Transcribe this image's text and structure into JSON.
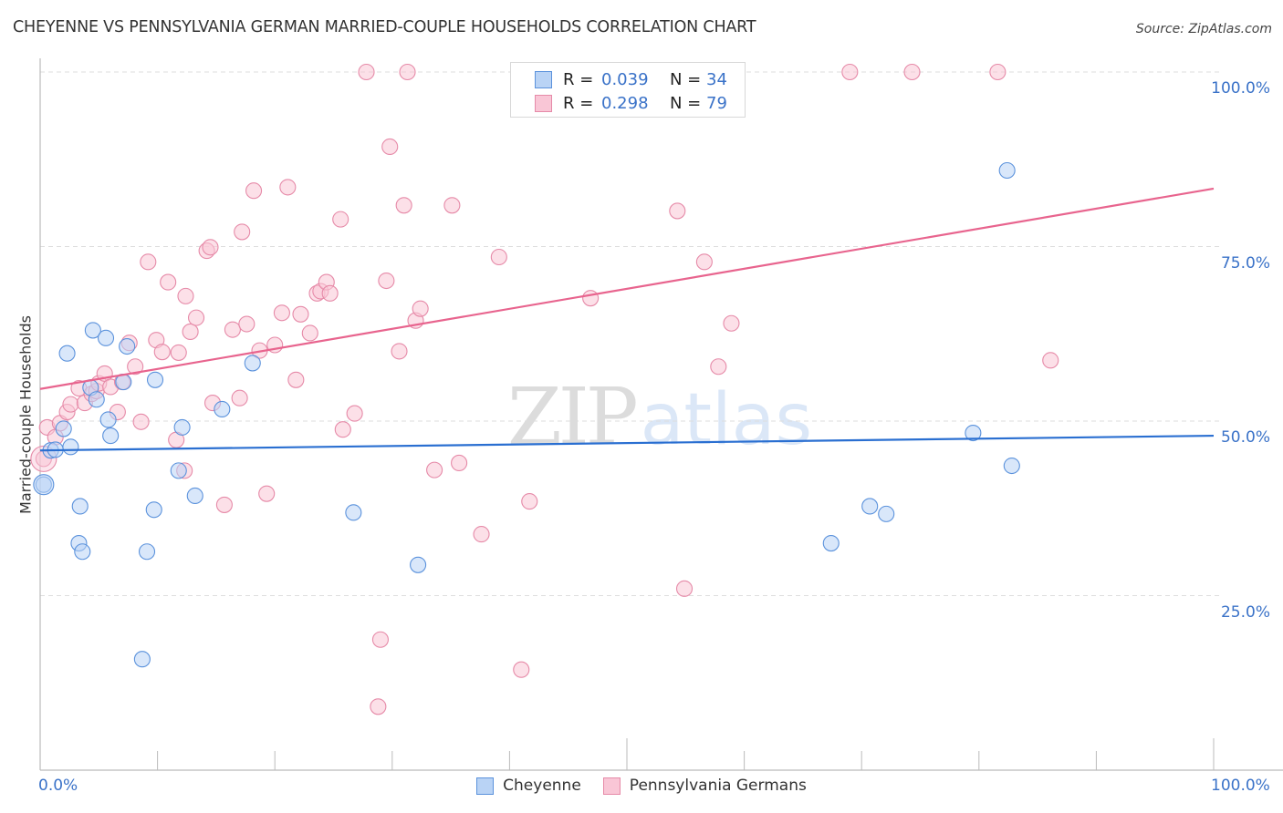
{
  "header": {
    "title": "CHEYENNE VS PENNSYLVANIA GERMAN MARRIED-COUPLE HOUSEHOLDS CORRELATION CHART",
    "source": "Source: ZipAtlas.com"
  },
  "watermark": {
    "zip": "ZIP",
    "atlas": "atlas"
  },
  "axes": {
    "ylabel": "Married-couple Households",
    "yticks": [
      {
        "label": "100.0%",
        "value": 100
      },
      {
        "label": "75.0%",
        "value": 75
      },
      {
        "label": "50.0%",
        "value": 50
      },
      {
        "label": "25.0%",
        "value": 25
      }
    ],
    "xticks": [
      {
        "label": "0.0%",
        "value": 0
      },
      {
        "label": "100.0%",
        "value": 100
      }
    ]
  },
  "stats": [
    {
      "r_label": "R =",
      "r_value": "0.039",
      "n_label": "N =",
      "n_value": "34"
    },
    {
      "r_label": "R =",
      "r_value": "0.298",
      "n_label": "N =",
      "n_value": "79"
    }
  ],
  "legend": [
    {
      "label": "Cheyenne"
    },
    {
      "label": "Pennsylvania Germans"
    }
  ],
  "colors": {
    "cheyenne_fill": "#b9d3f5",
    "cheyenne_stroke": "#5b92dc",
    "cheyenne_line": "#2a6fd1",
    "pa_fill": "#f9c6d6",
    "pa_stroke": "#e68aa8",
    "pa_line": "#e8648e",
    "tick_label": "#3a72c8",
    "grid": "#dddddd"
  },
  "chart_data": {
    "type": "scatter",
    "title": "CHEYENNE VS PENNSYLVANIA GERMAN MARRIED-COUPLE HOUSEHOLDS CORRELATION CHART",
    "xlabel": "",
    "ylabel": "Married-couple Households",
    "xlim": [
      0,
      100
    ],
    "ylim": [
      0,
      100
    ],
    "grid": true,
    "legend_position": "bottom",
    "series": [
      {
        "name": "Cheyenne",
        "r": 0.039,
        "n": 34,
        "trendline": {
          "x": [
            0,
            100
          ],
          "y": [
            45.8,
            47.9
          ]
        },
        "points": [
          [
            0.3,
            40.9
          ],
          [
            0.9,
            45.8
          ],
          [
            1.3,
            45.9
          ],
          [
            2.0,
            48.9
          ],
          [
            2.3,
            59.7
          ],
          [
            2.6,
            46.3
          ],
          [
            3.3,
            32.5
          ],
          [
            3.4,
            37.8
          ],
          [
            3.6,
            31.3
          ],
          [
            4.3,
            54.8
          ],
          [
            4.8,
            53.1
          ],
          [
            4.5,
            63.0
          ],
          [
            5.6,
            61.9
          ],
          [
            5.8,
            50.2
          ],
          [
            6.0,
            47.9
          ],
          [
            7.4,
            60.7
          ],
          [
            7.1,
            55.6
          ],
          [
            8.7,
            15.9
          ],
          [
            9.1,
            31.3
          ],
          [
            9.7,
            37.3
          ],
          [
            9.8,
            55.9
          ],
          [
            11.8,
            42.9
          ],
          [
            12.1,
            49.1
          ],
          [
            13.2,
            39.3
          ],
          [
            15.5,
            51.7
          ],
          [
            18.1,
            58.3
          ],
          [
            26.7,
            36.9
          ],
          [
            32.2,
            29.4
          ],
          [
            67.4,
            32.5
          ],
          [
            70.7,
            37.8
          ],
          [
            72.1,
            36.7
          ],
          [
            79.5,
            48.3
          ],
          [
            82.8,
            43.6
          ],
          [
            82.4,
            85.9
          ]
        ]
      },
      {
        "name": "Pennsylvania Germans",
        "r": 0.298,
        "n": 79,
        "trendline": {
          "x": [
            0,
            100
          ],
          "y": [
            54.6,
            83.3
          ]
        },
        "points": [
          [
            0.3,
            44.6
          ],
          [
            0.6,
            49.1
          ],
          [
            1.3,
            47.7
          ],
          [
            1.7,
            49.7
          ],
          [
            2.3,
            51.3
          ],
          [
            2.6,
            52.4
          ],
          [
            3.3,
            54.7
          ],
          [
            3.8,
            52.6
          ],
          [
            4.4,
            53.9
          ],
          [
            4.8,
            54.3
          ],
          [
            5.0,
            55.4
          ],
          [
            5.5,
            56.8
          ],
          [
            6.0,
            54.9
          ],
          [
            6.6,
            51.3
          ],
          [
            7.0,
            55.6
          ],
          [
            7.6,
            61.2
          ],
          [
            8.1,
            57.8
          ],
          [
            8.6,
            49.9
          ],
          [
            9.2,
            72.8
          ],
          [
            9.9,
            61.6
          ],
          [
            10.4,
            59.9
          ],
          [
            10.9,
            69.9
          ],
          [
            11.6,
            47.3
          ],
          [
            11.8,
            59.8
          ],
          [
            12.4,
            67.9
          ],
          [
            12.8,
            62.8
          ],
          [
            13.3,
            64.8
          ],
          [
            14.2,
            74.4
          ],
          [
            14.5,
            74.9
          ],
          [
            14.7,
            52.6
          ],
          [
            15.7,
            38.0
          ],
          [
            16.4,
            63.1
          ],
          [
            17.0,
            53.3
          ],
          [
            17.2,
            77.1
          ],
          [
            17.6,
            63.9
          ],
          [
            18.2,
            83.0
          ],
          [
            18.7,
            60.1
          ],
          [
            19.3,
            39.6
          ],
          [
            20.0,
            60.9
          ],
          [
            20.6,
            65.5
          ],
          [
            21.1,
            83.5
          ],
          [
            21.8,
            55.9
          ],
          [
            22.2,
            65.3
          ],
          [
            23.0,
            62.6
          ],
          [
            23.6,
            68.3
          ],
          [
            23.9,
            68.6
          ],
          [
            24.4,
            69.9
          ],
          [
            24.7,
            68.3
          ],
          [
            25.6,
            78.9
          ],
          [
            25.8,
            48.8
          ],
          [
            26.8,
            51.1
          ],
          [
            27.8,
            100.0
          ],
          [
            28.8,
            9.1
          ],
          [
            29.0,
            18.7
          ],
          [
            29.5,
            70.1
          ],
          [
            29.8,
            89.3
          ],
          [
            30.6,
            60.0
          ],
          [
            31.0,
            80.9
          ],
          [
            31.3,
            100.0
          ],
          [
            32.0,
            64.4
          ],
          [
            32.4,
            66.1
          ],
          [
            33.6,
            43.0
          ],
          [
            35.1,
            80.9
          ],
          [
            35.7,
            44.0
          ],
          [
            37.6,
            33.8
          ],
          [
            39.1,
            73.5
          ],
          [
            41.0,
            14.4
          ],
          [
            41.7,
            38.5
          ],
          [
            46.9,
            67.6
          ],
          [
            54.3,
            80.1
          ],
          [
            54.9,
            26.0
          ],
          [
            56.6,
            72.8
          ],
          [
            57.8,
            57.8
          ],
          [
            58.9,
            64.0
          ],
          [
            69.0,
            100.0
          ],
          [
            74.3,
            100.0
          ],
          [
            81.6,
            100.0
          ],
          [
            86.1,
            58.7
          ],
          [
            12.3,
            42.9
          ]
        ]
      }
    ]
  }
}
